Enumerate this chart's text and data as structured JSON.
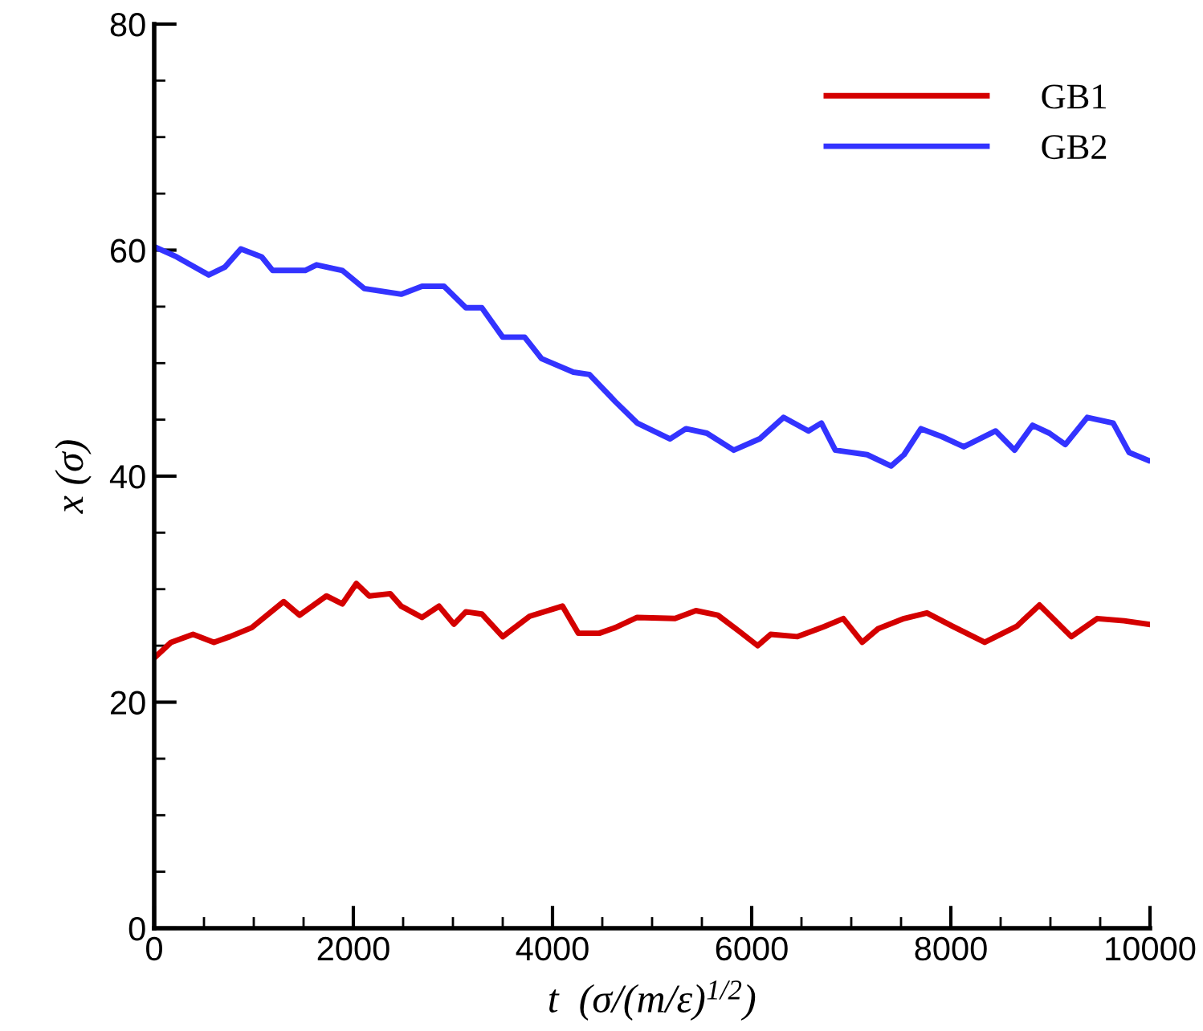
{
  "chart_data": {
    "type": "line",
    "xlabel": "t  (σ/(m/ε)$^{1/2}$)",
    "ylabel": "x (σ)",
    "xlim": [
      0,
      10000
    ],
    "ylim": [
      0,
      80
    ],
    "xticks": [
      0,
      2000,
      4000,
      6000,
      8000,
      10000
    ],
    "yticks": [
      0,
      20,
      40,
      60,
      80
    ],
    "grid": false,
    "legend": "top right",
    "line_style": "solid",
    "marker": "none",
    "series": [
      {
        "name": "GB1",
        "color": "#d40000",
        "x": [
          0,
          170,
          390,
          600,
          760,
          980,
          1300,
          1460,
          1730,
          1890,
          2030,
          2160,
          2370,
          2480,
          2690,
          2860,
          3010,
          3130,
          3290,
          3500,
          3770,
          4100,
          4260,
          4470,
          4630,
          4850,
          5230,
          5440,
          5660,
          5870,
          6060,
          6190,
          6460,
          6730,
          6920,
          7110,
          7270,
          7530,
          7760,
          8020,
          8340,
          8660,
          8890,
          9210,
          9470,
          9740,
          9980
        ],
        "values": [
          23.9,
          25.3,
          26,
          25.3,
          25.8,
          26.6,
          28.9,
          27.7,
          29.4,
          28.7,
          30.5,
          29.4,
          29.6,
          28.5,
          27.5,
          28.5,
          26.9,
          28,
          27.8,
          25.8,
          27.6,
          28.5,
          26.1,
          26.1,
          26.6,
          27.5,
          27.4,
          28.1,
          27.7,
          26.3,
          25,
          26,
          25.8,
          26.7,
          27.4,
          25.3,
          26.5,
          27.4,
          27.9,
          26.7,
          25.3,
          26.7,
          28.6,
          25.8,
          27.4,
          27.2,
          26.9
        ]
      },
      {
        "name": "GB2",
        "color": "#3333ff",
        "x": [
          0,
          226,
          548,
          710,
          870,
          1080,
          1190,
          1516,
          1630,
          1890,
          2110,
          2480,
          2690,
          2910,
          3130,
          3290,
          3500,
          3720,
          3890,
          4210,
          4370,
          4630,
          4850,
          5180,
          5340,
          5550,
          5820,
          6080,
          6320,
          6570,
          6700,
          6840,
          7160,
          7400,
          7530,
          7700,
          7910,
          8130,
          8450,
          8640,
          8820,
          8990,
          9150,
          9370,
          9630,
          9790,
          9980
        ],
        "values": [
          60.3,
          59.4,
          57.8,
          58.5,
          60.1,
          59.4,
          58.2,
          58.2,
          58.7,
          58.2,
          56.6,
          56.1,
          56.8,
          56.8,
          54.9,
          54.9,
          52.3,
          52.3,
          50.4,
          49.2,
          49,
          46.6,
          44.7,
          43.3,
          44.2,
          43.8,
          42.3,
          43.3,
          45.2,
          44,
          44.7,
          42.3,
          41.9,
          40.9,
          41.9,
          44.2,
          43.5,
          42.6,
          44,
          42.3,
          44.5,
          43.8,
          42.8,
          45.2,
          44.7,
          42.1,
          41.4
        ]
      }
    ]
  }
}
